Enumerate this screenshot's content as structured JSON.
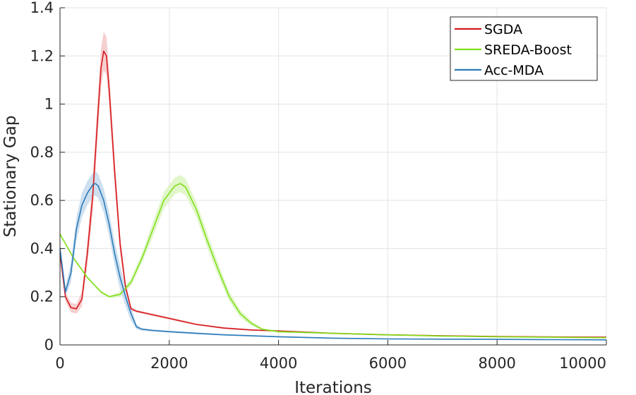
{
  "chart_data": {
    "type": "line",
    "title": "",
    "xlabel": "Iterations",
    "ylabel": "Stationary Gap",
    "xlim": [
      0,
      10000
    ],
    "ylim": [
      0,
      1.4
    ],
    "x_ticks": [
      0,
      2000,
      4000,
      6000,
      8000,
      10000
    ],
    "x_tick_labels": [
      "0",
      "2000",
      "4000",
      "6000",
      "8000",
      "10000"
    ],
    "y_ticks": [
      0,
      0.2,
      0.4,
      0.6,
      0.8,
      1.0,
      1.2,
      1.4
    ],
    "y_tick_labels": [
      "0",
      "0.2",
      "0.4",
      "0.6",
      "0.8",
      "1",
      "1.2",
      "1.4"
    ],
    "grid": true,
    "legend_position": "top-right",
    "series": [
      {
        "name": "SGDA",
        "color": "#d7191c",
        "band_color": "#f4c7c9",
        "x": [
          0,
          100,
          200,
          300,
          400,
          500,
          600,
          700,
          750,
          800,
          850,
          900,
          1000,
          1100,
          1200,
          1300,
          1400,
          1600,
          1800,
          2000,
          2500,
          3000,
          3500,
          4000,
          5000,
          6000,
          7000,
          8000,
          9000,
          10000
        ],
        "y": [
          0.38,
          0.2,
          0.155,
          0.15,
          0.19,
          0.38,
          0.62,
          0.98,
          1.15,
          1.22,
          1.2,
          1.06,
          0.72,
          0.42,
          0.24,
          0.15,
          0.14,
          0.13,
          0.12,
          0.11,
          0.085,
          0.07,
          0.062,
          0.058,
          0.048,
          0.042,
          0.038,
          0.035,
          0.033,
          0.032
        ],
        "spread": [
          0.02,
          0.02,
          0.02,
          0.02,
          0.03,
          0.05,
          0.07,
          0.08,
          0.08,
          0.08,
          0.08,
          0.07,
          0.06,
          0.04,
          0.02,
          0.01,
          0.005,
          0.005,
          0.005,
          0.005,
          0.004,
          0.004,
          0.003,
          0.003,
          0.003,
          0.003,
          0.002,
          0.002,
          0.002,
          0.002
        ]
      },
      {
        "name": "SREDA-Boost",
        "color": "#7fe01a",
        "band_color": "#dcf5bf",
        "x": [
          0,
          250,
          500,
          750,
          900,
          1100,
          1300,
          1500,
          1700,
          1900,
          2100,
          2200,
          2300,
          2500,
          2700,
          2900,
          3100,
          3300,
          3500,
          3700,
          4000,
          5000,
          6000,
          7000,
          8000,
          9000,
          10000
        ],
        "y": [
          0.46,
          0.36,
          0.28,
          0.22,
          0.2,
          0.21,
          0.26,
          0.36,
          0.48,
          0.6,
          0.66,
          0.67,
          0.655,
          0.56,
          0.43,
          0.31,
          0.2,
          0.13,
          0.09,
          0.065,
          0.055,
          0.048,
          0.042,
          0.037,
          0.034,
          0.032,
          0.03
        ],
        "spread": [
          0.005,
          0.005,
          0.005,
          0.005,
          0.005,
          0.01,
          0.015,
          0.02,
          0.03,
          0.035,
          0.035,
          0.035,
          0.035,
          0.03,
          0.03,
          0.025,
          0.02,
          0.015,
          0.01,
          0.005,
          0.004,
          0.003,
          0.003,
          0.003,
          0.002,
          0.002,
          0.002
        ]
      },
      {
        "name": "Acc-MDA",
        "color": "#2b7bba",
        "band_color": "#c6dbec",
        "x": [
          0,
          100,
          200,
          300,
          400,
          500,
          600,
          650,
          700,
          800,
          900,
          1000,
          1100,
          1200,
          1300,
          1400,
          1500,
          1700,
          2000,
          2500,
          3000,
          4000,
          5000,
          6000,
          7000,
          8000,
          9000,
          10000
        ],
        "y": [
          0.4,
          0.22,
          0.3,
          0.48,
          0.58,
          0.63,
          0.665,
          0.67,
          0.66,
          0.6,
          0.5,
          0.38,
          0.28,
          0.2,
          0.13,
          0.075,
          0.065,
          0.06,
          0.055,
          0.048,
          0.042,
          0.034,
          0.028,
          0.025,
          0.024,
          0.023,
          0.022,
          0.021
        ],
        "spread": [
          0.02,
          0.02,
          0.04,
          0.05,
          0.05,
          0.05,
          0.05,
          0.05,
          0.05,
          0.05,
          0.05,
          0.05,
          0.05,
          0.04,
          0.03,
          0.01,
          0.005,
          0.005,
          0.004,
          0.004,
          0.003,
          0.003,
          0.002,
          0.002,
          0.002,
          0.002,
          0.002,
          0.002
        ]
      }
    ]
  }
}
